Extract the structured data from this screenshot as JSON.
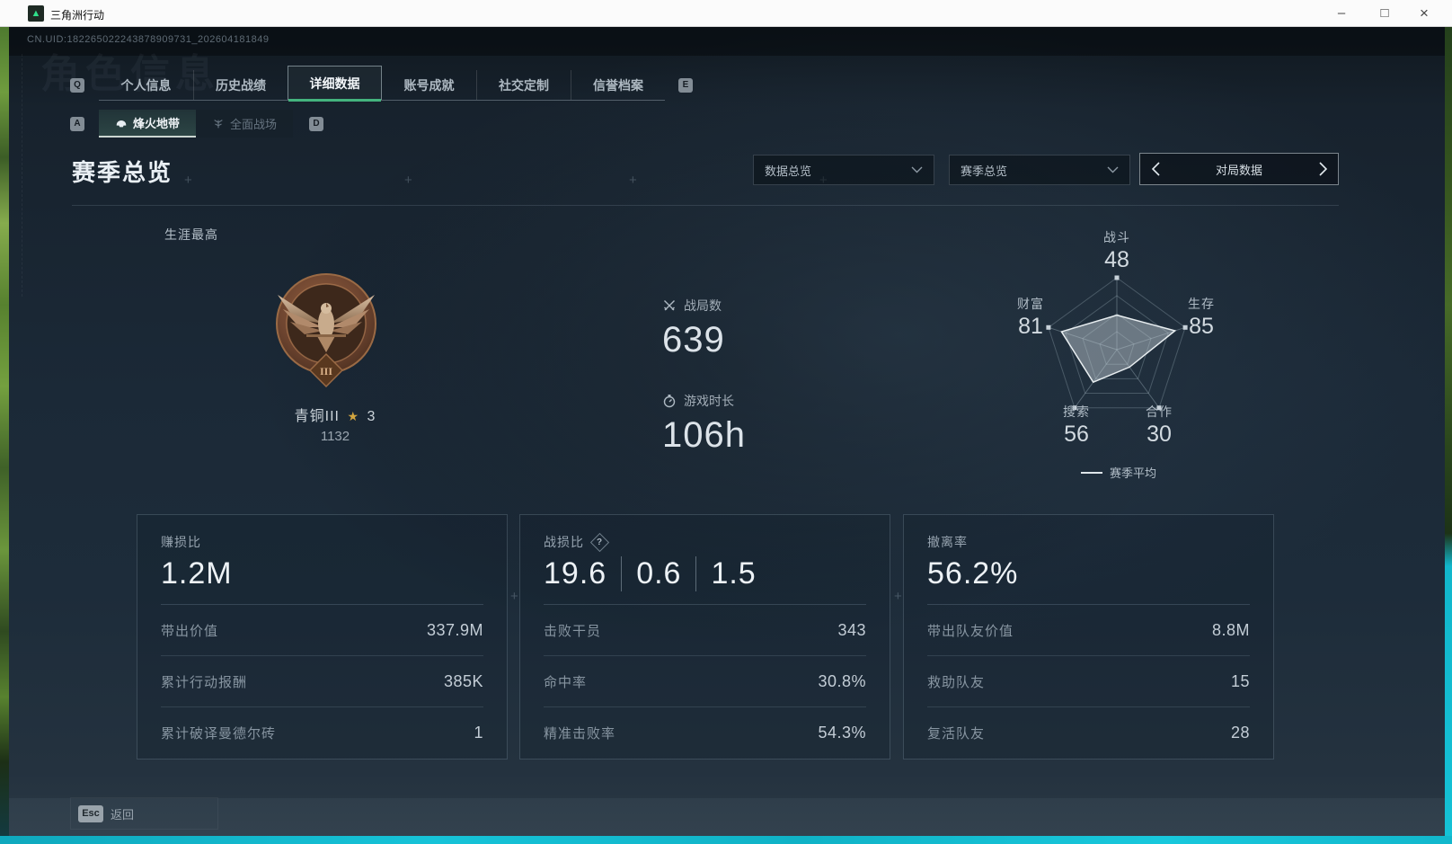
{
  "colors": {
    "accent_green": "#44b47e",
    "badge_bronze": "#7a4f35",
    "star_gold": "#d2a53f",
    "wallpaper_cyan": "#12b7cc",
    "titlebar_bg": "#fbfbfb"
  },
  "window": {
    "title": "三角洲行动",
    "logo_icon": "▲",
    "controls": {
      "minimize": "–",
      "maximize": "□",
      "close": "×"
    }
  },
  "uid": "CN.UID:182265022243878909731_202604181849",
  "watermark": "角色信息",
  "tabs": {
    "shortcut_left": "Q",
    "shortcut_right": "E",
    "active_index": 2,
    "items": [
      {
        "label": "个人信息"
      },
      {
        "label": "历史战绩"
      },
      {
        "label": "详细数据"
      },
      {
        "label": "账号成就"
      },
      {
        "label": "社交定制"
      },
      {
        "label": "信誉档案"
      }
    ]
  },
  "subtabs": {
    "shortcut_left": "A",
    "shortcut_right": "D",
    "active_index": 0,
    "items": [
      {
        "label": "烽火地带"
      },
      {
        "label": "全面战场"
      }
    ]
  },
  "page": {
    "title": "赛季总览"
  },
  "filters": {
    "data_overview": "数据总览",
    "season_overview": "赛季总览",
    "pager_label": "对局数据"
  },
  "career": {
    "section_label": "生涯最高",
    "tier_numeral": "III",
    "rank_name": "青铜III",
    "star_icon": "★",
    "star_count": "3",
    "score": "1132"
  },
  "stats": [
    {
      "icon": "crossed-swords",
      "label": "战局数",
      "value": "639"
    },
    {
      "icon": "stopwatch",
      "label": "游戏时长",
      "value": "106h"
    }
  ],
  "chart_data": {
    "type": "radar",
    "title": "",
    "scale_max": 100,
    "rings": [
      0.25,
      0.5,
      0.75,
      1
    ],
    "legend": "赛季平均",
    "legend_position": "bottom",
    "axes": [
      {
        "label": "战斗",
        "value": 48
      },
      {
        "label": "生存",
        "value": 85
      },
      {
        "label": "合作",
        "value": 30
      },
      {
        "label": "搜索",
        "value": 56
      },
      {
        "label": "财富",
        "value": 81
      }
    ],
    "series": [
      {
        "name": "赛季平均",
        "values": [
          48,
          85,
          30,
          56,
          81
        ]
      }
    ]
  },
  "cards": [
    {
      "title": "赚损比",
      "value": "1.2M",
      "rows": [
        {
          "label": "带出价值",
          "value": "337.9M"
        },
        {
          "label": "累计行动报酬",
          "value": "385K"
        },
        {
          "label": "累计破译曼德尔砖",
          "value": "1"
        }
      ]
    },
    {
      "title": "战损比",
      "help_icon": "?",
      "values": [
        "19.6",
        "0.6",
        "1.5"
      ],
      "rows": [
        {
          "label": "击败干员",
          "value": "343"
        },
        {
          "label": "命中率",
          "value": "30.8%"
        },
        {
          "label": "精准击败率",
          "value": "54.3%"
        }
      ]
    },
    {
      "title": "撤离率",
      "value": "56.2%",
      "rows": [
        {
          "label": "带出队友价值",
          "value": "8.8M"
        },
        {
          "label": "救助队友",
          "value": "15"
        },
        {
          "label": "复活队友",
          "value": "28"
        }
      ]
    }
  ],
  "footer": {
    "esc_key": "Esc",
    "back_label": "返回"
  }
}
